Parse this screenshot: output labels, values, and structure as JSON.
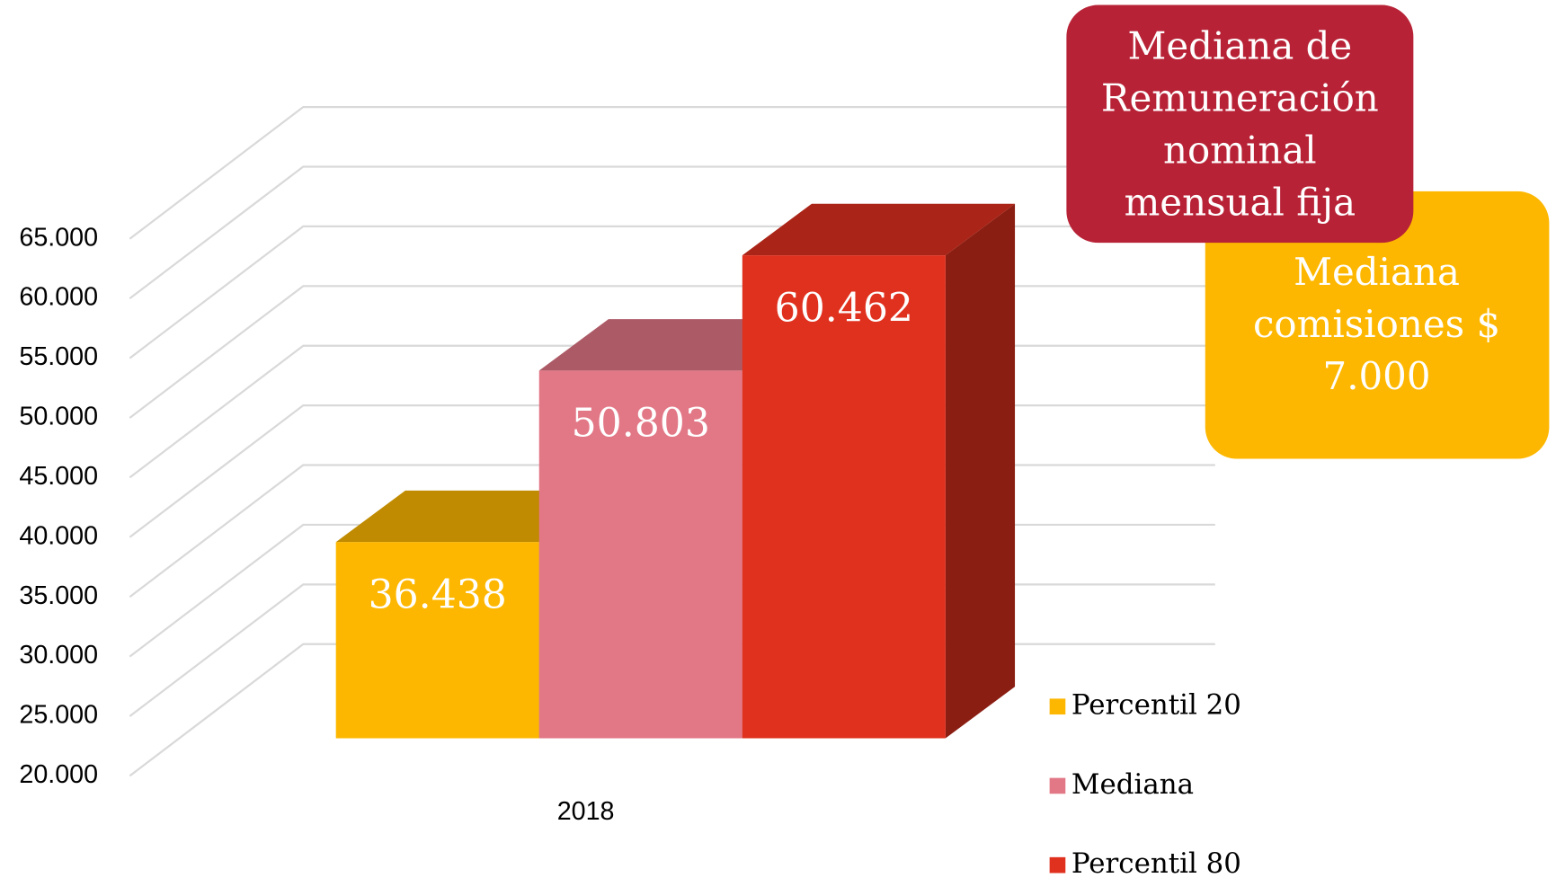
{
  "chart_data": {
    "type": "bar3d",
    "categories": [
      "2018"
    ],
    "series": [
      {
        "name": "Percentil 20",
        "color": "#FDB700",
        "values": [
          36438
        ],
        "value_labels": [
          "36.438"
        ]
      },
      {
        "name": "Mediana",
        "color": "#E27786",
        "values": [
          50803
        ],
        "value_labels": [
          "50.803"
        ]
      },
      {
        "name": "Percentil 80",
        "color": "#E0301E",
        "values": [
          60462
        ],
        "value_labels": [
          "60.462"
        ]
      }
    ],
    "ylim": [
      20000,
      65000
    ],
    "yticks": [
      {
        "value": 20000,
        "label": "20.000"
      },
      {
        "value": 25000,
        "label": "25.000"
      },
      {
        "value": 30000,
        "label": "30.000"
      },
      {
        "value": 35000,
        "label": "35.000"
      },
      {
        "value": 40000,
        "label": "40.000"
      },
      {
        "value": 45000,
        "label": "45.000"
      },
      {
        "value": 50000,
        "label": "50.000"
      },
      {
        "value": 55000,
        "label": "55.000"
      },
      {
        "value": 60000,
        "label": "60.000"
      },
      {
        "value": 65000,
        "label": "65.000"
      }
    ],
    "grid": true,
    "legend": "right",
    "annotations": [
      {
        "lines": [
          "Mediana de",
          "Remuneración",
          "nominal",
          "mensual fija"
        ],
        "color": "#B82236"
      },
      {
        "lines": [
          "Mediana",
          "comisiones $",
          "7.000"
        ],
        "color": "#FDB700"
      }
    ]
  }
}
